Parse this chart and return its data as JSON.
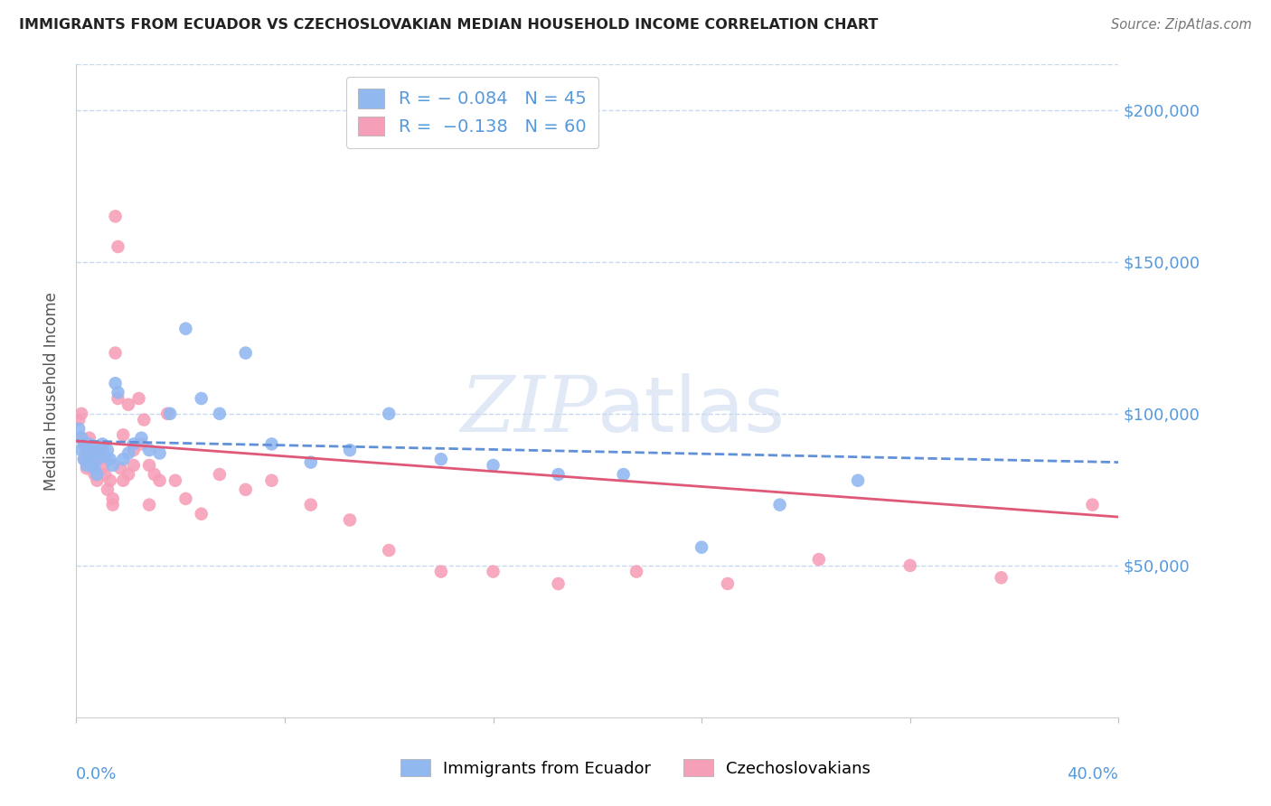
{
  "title": "IMMIGRANTS FROM ECUADOR VS CZECHOSLOVAKIAN MEDIAN HOUSEHOLD INCOME CORRELATION CHART",
  "source": "Source: ZipAtlas.com",
  "ylabel": "Median Household Income",
  "y_ticks": [
    0,
    50000,
    100000,
    150000,
    200000
  ],
  "y_tick_labels": [
    "",
    "$50,000",
    "$100,000",
    "$150,000",
    "$200,000"
  ],
  "x_range": [
    0.0,
    0.4
  ],
  "y_range": [
    0,
    215000
  ],
  "legend1_label": "Immigrants from Ecuador",
  "legend2_label": "Czechoslovakians",
  "R1": "-0.084",
  "N1": "45",
  "R2": "-0.138",
  "N2": "60",
  "color_ecuador": "#92b8f0",
  "color_czech": "#f5a0b8",
  "color_trend_ecuador": "#6090d8",
  "color_trend_czech": "#e05878",
  "color_axis_labels": "#5599dd",
  "grid_color": "#c8daf0",
  "background_color": "#ffffff",
  "ecuador_x": [
    0.001,
    0.002,
    0.002,
    0.003,
    0.003,
    0.004,
    0.004,
    0.005,
    0.005,
    0.006,
    0.006,
    0.007,
    0.007,
    0.008,
    0.008,
    0.009,
    0.01,
    0.011,
    0.012,
    0.013,
    0.014,
    0.015,
    0.016,
    0.018,
    0.02,
    0.022,
    0.025,
    0.028,
    0.032,
    0.036,
    0.042,
    0.048,
    0.055,
    0.065,
    0.075,
    0.09,
    0.105,
    0.12,
    0.14,
    0.16,
    0.185,
    0.21,
    0.24,
    0.27,
    0.3
  ],
  "ecuador_y": [
    95000,
    92000,
    88000,
    90000,
    85000,
    87000,
    83000,
    90000,
    85000,
    88000,
    83000,
    87000,
    82000,
    85000,
    80000,
    88000,
    90000,
    86000,
    88000,
    85000,
    83000,
    110000,
    107000,
    85000,
    87000,
    90000,
    92000,
    88000,
    87000,
    100000,
    128000,
    105000,
    100000,
    120000,
    90000,
    84000,
    88000,
    100000,
    85000,
    83000,
    80000,
    80000,
    56000,
    70000,
    78000
  ],
  "czech_x": [
    0.001,
    0.002,
    0.002,
    0.003,
    0.003,
    0.004,
    0.004,
    0.005,
    0.005,
    0.006,
    0.006,
    0.007,
    0.007,
    0.008,
    0.008,
    0.009,
    0.01,
    0.01,
    0.011,
    0.012,
    0.013,
    0.014,
    0.014,
    0.015,
    0.016,
    0.017,
    0.018,
    0.02,
    0.022,
    0.024,
    0.026,
    0.028,
    0.03,
    0.032,
    0.035,
    0.038,
    0.042,
    0.048,
    0.055,
    0.065,
    0.075,
    0.09,
    0.105,
    0.12,
    0.14,
    0.16,
    0.185,
    0.215,
    0.25,
    0.285,
    0.32,
    0.355,
    0.39,
    0.015,
    0.016,
    0.018,
    0.02,
    0.022,
    0.025,
    0.028
  ],
  "czech_y": [
    98000,
    100000,
    92000,
    90000,
    85000,
    88000,
    82000,
    92000,
    87000,
    88000,
    83000,
    85000,
    80000,
    87000,
    78000,
    85000,
    88000,
    82000,
    80000,
    75000,
    78000,
    70000,
    72000,
    165000,
    155000,
    82000,
    78000,
    80000,
    83000,
    105000,
    98000,
    83000,
    80000,
    78000,
    100000,
    78000,
    72000,
    67000,
    80000,
    75000,
    78000,
    70000,
    65000,
    55000,
    48000,
    48000,
    44000,
    48000,
    44000,
    52000,
    50000,
    46000,
    70000,
    120000,
    105000,
    93000,
    103000,
    88000,
    90000,
    70000
  ],
  "ecuador_trend_x": [
    0.0,
    0.4
  ],
  "ecuador_trend_y": [
    91000,
    84000
  ],
  "czech_trend_x": [
    0.0,
    0.4
  ],
  "czech_trend_y": [
    91000,
    66000
  ]
}
